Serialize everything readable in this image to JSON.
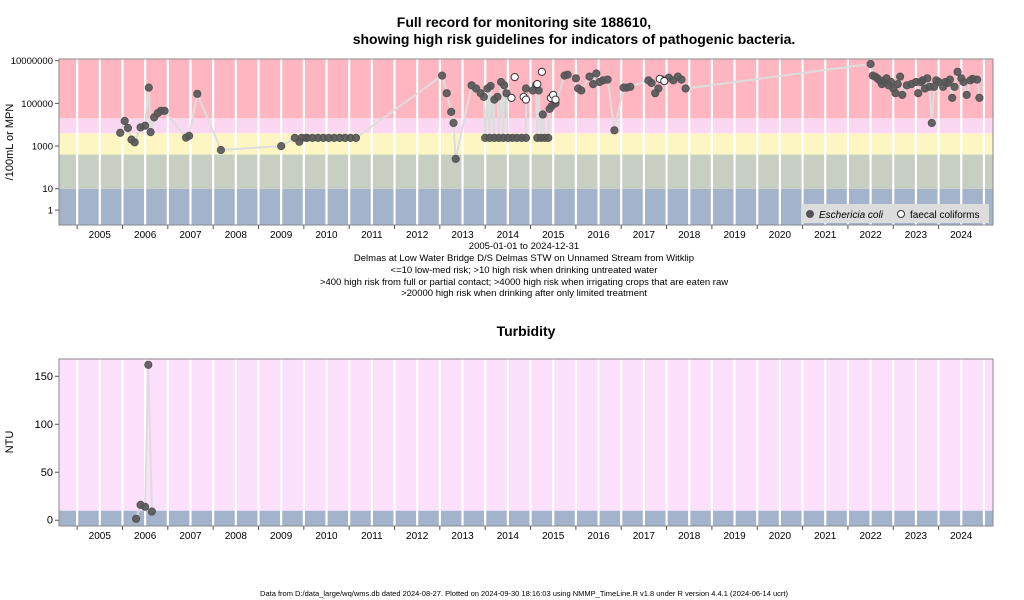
{
  "title": {
    "line1": "Full record for monitoring site 188610,",
    "line2": "showing high risk guidelines for indicators of pathogenic bacteria."
  },
  "colors": {
    "red": "#ffb6c1",
    "pink": "#fcd7f1",
    "yellow": "#fdf6c3",
    "green": "#c7cfc2",
    "blue": "#a4b3cc",
    "turb_bg": "#fde0fc",
    "grid": "#ffffff",
    "marker": "#555555",
    "line": "#dddddd"
  },
  "caption": {
    "range": "2005-01-01 to 2024-12-31",
    "site": "Delmas at Low Water Bridge D/S Delmas STW on Unnamed Stream from Witklip",
    "guide1": "<=10 low-med risk; >10 high risk when drinking untreated water",
    "guide2": ">400 high risk from full or partial contact; >4000 high risk when irrigating crops that are eaten raw",
    "guide3": ">20000 high risk when drinking after only limited treatment"
  },
  "footer": "Data from D:/data_large/wq/wms.db dated 2024-08-27. Plotted on 2024-09-30 18:16:03 using NMMP_TimeLine.R v1.8 under R version 4.4.1 (2024-06-14 ucrt)",
  "chart_data": [
    {
      "type": "scatter",
      "title": "Full record for monitoring site 188610, showing high risk guidelines for indicators of pathogenic bacteria.",
      "ylabel": "/100mL or MPN",
      "y_scale": "log",
      "xlim": [
        2004.6,
        2025.2
      ],
      "ylim": [
        0.2,
        12000000
      ],
      "x_ticks": [
        "2005",
        "2006",
        "2007",
        "2008",
        "2009",
        "2010",
        "2011",
        "2012",
        "2013",
        "2014",
        "2015",
        "2016",
        "2017",
        "2018",
        "2019",
        "2020",
        "2021",
        "2022",
        "2023",
        "2024"
      ],
      "y_ticks": [
        "1",
        "10",
        "1000",
        "100000",
        "10000000"
      ],
      "y_tick_values": [
        1,
        10,
        1000,
        100000,
        10000000
      ],
      "bands": [
        {
          "from": 0.2,
          "to": 10,
          "color": "blue"
        },
        {
          "from": 10,
          "to": 400,
          "color": "green"
        },
        {
          "from": 400,
          "to": 4000,
          "color": "yellow"
        },
        {
          "from": 4000,
          "to": 20000,
          "color": "pink"
        },
        {
          "from": 20000,
          "to": 12000000,
          "color": "red"
        }
      ],
      "legend": {
        "position": "bottom-right",
        "entries": [
          "Eschericia coli",
          "faecal coliforms"
        ]
      },
      "series": [
        {
          "name": "Eschericia coli",
          "marker": "filled-circle",
          "points": [
            [
              2005.95,
              4200
            ],
            [
              2006.05,
              15000
            ],
            [
              2006.12,
              7000
            ],
            [
              2006.2,
              2000
            ],
            [
              2006.27,
              1500
            ],
            [
              2006.4,
              7500
            ],
            [
              2006.5,
              9000
            ],
            [
              2006.58,
              550000
            ],
            [
              2006.62,
              4500
            ],
            [
              2006.7,
              22000
            ],
            [
              2006.78,
              35000
            ],
            [
              2006.85,
              45000
            ],
            [
              2006.93,
              45000
            ],
            [
              2007.4,
              2500
            ],
            [
              2007.47,
              3000
            ],
            [
              2007.65,
              280000
            ],
            [
              2008.17,
              650
            ],
            [
              2009.5,
              1000
            ],
            [
              2009.8,
              2400
            ],
            [
              2009.9,
              1600
            ],
            [
              2010.05,
              2400
            ],
            [
              2013.05,
              2000000
            ],
            [
              2013.15,
              300000
            ],
            [
              2013.25,
              40000
            ],
            [
              2013.3,
              12000
            ],
            [
              2013.35,
              250
            ],
            [
              2013.7,
              700000
            ],
            [
              2013.8,
              500000
            ],
            [
              2013.9,
              300000
            ],
            [
              2013.97,
              200000
            ],
            [
              2014.05,
              500000
            ],
            [
              2014.12,
              650000
            ],
            [
              2014.2,
              150000
            ],
            [
              2014.27,
              200000
            ],
            [
              2014.35,
              1000000
            ],
            [
              2014.42,
              700000
            ],
            [
              2014.47,
              300000
            ],
            [
              2014.9,
              500000
            ],
            [
              2015.05,
              400000
            ],
            [
              2015.12,
              700000
            ],
            [
              2015.18,
              400000
            ],
            [
              2015.27,
              30000
            ],
            [
              2015.42,
              55000
            ],
            [
              2015.47,
              75000
            ],
            [
              2015.55,
              100000
            ],
            [
              2015.75,
              2000000
            ],
            [
              2015.82,
              2200000
            ],
            [
              2016.0,
              1500000
            ],
            [
              2016.05,
              500000
            ],
            [
              2016.12,
              400000
            ],
            [
              2016.3,
              1800000
            ],
            [
              2016.38,
              800000
            ],
            [
              2016.45,
              2500000
            ],
            [
              2016.52,
              1000000
            ],
            [
              2016.6,
              1200000
            ],
            [
              2016.7,
              1300000
            ],
            [
              2016.85,
              5500
            ],
            [
              2017.05,
              550000
            ],
            [
              2017.12,
              550000
            ],
            [
              2017.2,
              600000
            ],
            [
              2017.6,
              1200000
            ],
            [
              2017.67,
              900000
            ],
            [
              2017.75,
              300000
            ],
            [
              2017.82,
              500000
            ],
            [
              2017.9,
              1300000
            ],
            [
              2018.05,
              1600000
            ],
            [
              2018.15,
              1200000
            ],
            [
              2018.25,
              1800000
            ],
            [
              2018.33,
              1300000
            ],
            [
              2018.42,
              500000
            ],
            [
              2022.5,
              7000000
            ],
            [
              2022.55,
              2000000
            ],
            [
              2022.6,
              1800000
            ],
            [
              2022.65,
              1500000
            ],
            [
              2022.7,
              1200000
            ],
            [
              2022.75,
              800000
            ],
            [
              2022.8,
              1000000
            ],
            [
              2022.85,
              1500000
            ],
            [
              2022.9,
              700000
            ],
            [
              2022.95,
              1000000
            ],
            [
              2023.0,
              500000
            ],
            [
              2023.05,
              300000
            ],
            [
              2023.1,
              800000
            ],
            [
              2023.15,
              1800000
            ],
            [
              2023.2,
              250000
            ],
            [
              2023.3,
              700000
            ],
            [
              2023.4,
              800000
            ],
            [
              2023.5,
              1000000
            ],
            [
              2023.55,
              300000
            ],
            [
              2023.6,
              1000000
            ],
            [
              2023.65,
              1200000
            ],
            [
              2023.7,
              500000
            ],
            [
              2023.75,
              1500000
            ],
            [
              2023.8,
              600000
            ],
            [
              2023.85,
              12000
            ],
            [
              2023.9,
              600000
            ],
            [
              2023.95,
              1200000
            ],
            [
              2024.0,
              1000000
            ],
            [
              2024.1,
              600000
            ],
            [
              2024.15,
              1000000
            ],
            [
              2024.2,
              900000
            ],
            [
              2024.25,
              1300000
            ],
            [
              2024.3,
              180000
            ],
            [
              2024.35,
              600000
            ],
            [
              2024.42,
              3000000
            ],
            [
              2024.5,
              1500000
            ],
            [
              2024.55,
              1000000
            ],
            [
              2024.62,
              250000
            ],
            [
              2024.7,
              1200000
            ],
            [
              2024.75,
              1400000
            ],
            [
              2024.85,
              1300000
            ],
            [
              2024.9,
              180000
            ]
          ],
          "constant_runs": [
            {
              "x_from": 2009.95,
              "x_to": 2011.2,
              "y": 2400,
              "step": 0.12
            },
            {
              "x_from": 2014.0,
              "x_to": 2014.9,
              "y": 2400,
              "step": 0.1
            },
            {
              "x_from": 2015.15,
              "x_to": 2015.4,
              "y": 2400,
              "step": 0.08
            }
          ]
        },
        {
          "name": "faecal coliforms",
          "marker": "open-circle",
          "points": [
            [
              2014.65,
              1700000
            ],
            [
              2014.58,
              180000
            ],
            [
              2014.85,
              200000
            ],
            [
              2014.9,
              150000
            ],
            [
              2015.15,
              800000
            ],
            [
              2015.25,
              3000000
            ],
            [
              2015.45,
              180000
            ],
            [
              2015.5,
              250000
            ],
            [
              2015.55,
              150000
            ],
            [
              2017.85,
              1400000
            ],
            [
              2017.95,
              1100000
            ]
          ]
        }
      ]
    },
    {
      "type": "scatter",
      "title": "Turbidity",
      "ylabel": "NTU",
      "xlim": [
        2004.6,
        2025.2
      ],
      "ylim": [
        -6,
        168
      ],
      "x_ticks": [
        "2005",
        "2006",
        "2007",
        "2008",
        "2009",
        "2010",
        "2011",
        "2012",
        "2013",
        "2014",
        "2015",
        "2016",
        "2017",
        "2018",
        "2019",
        "2020",
        "2021",
        "2022",
        "2023",
        "2024"
      ],
      "y_ticks": [
        "0",
        "50",
        "100",
        "150"
      ],
      "y_tick_values": [
        0,
        50,
        100,
        150
      ],
      "bands": [
        {
          "from": -6,
          "to": 10,
          "color": "blue"
        },
        {
          "from": 10,
          "to": 168,
          "color": "turb_bg"
        }
      ],
      "series": [
        {
          "marker": "filled-circle",
          "points": [
            [
              2006.3,
              1.5
            ],
            [
              2006.4,
              16
            ],
            [
              2006.5,
              14
            ],
            [
              2006.57,
              162
            ],
            [
              2006.65,
              9
            ]
          ]
        }
      ]
    }
  ]
}
